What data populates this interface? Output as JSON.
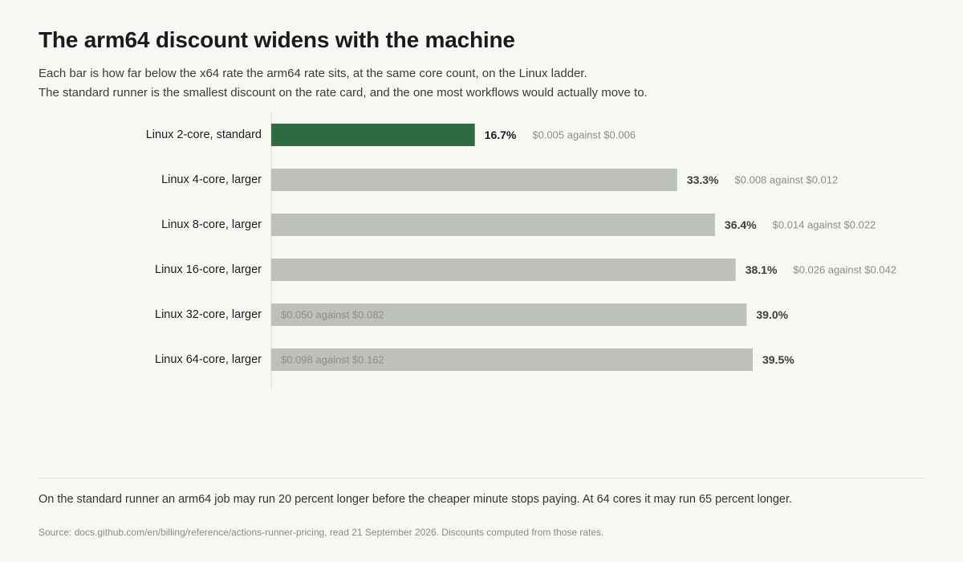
{
  "header": {
    "title": "The arm64 discount widens with the machine",
    "subtitle_line1": "Each bar is how far below the x64 rate the arm64 rate sits, at the same core count, on the Linux ladder.",
    "subtitle_line2": "The standard runner is the smallest discount on the rate card, and the one most workflows would actually move to."
  },
  "chart_data": {
    "type": "bar",
    "orientation": "horizontal",
    "categories": [
      "Linux 2-core, standard",
      "Linux 4-core, larger",
      "Linux 8-core, larger",
      "Linux 16-core, larger",
      "Linux 32-core, larger",
      "Linux 64-core, larger"
    ],
    "values": [
      16.7,
      33.3,
      36.4,
      38.1,
      39.0,
      39.5
    ],
    "value_labels": [
      "16.7%",
      "33.3%",
      "36.4%",
      "38.1%",
      "39.0%",
      "39.5%"
    ],
    "rate_labels": [
      "$0.005 against $0.006",
      "$0.008 against $0.012",
      "$0.014 against $0.022",
      "$0.026 against $0.042",
      "$0.050 against $0.082",
      "$0.098 against $0.162"
    ],
    "rate_label_inside": [
      false,
      false,
      false,
      false,
      true,
      true
    ],
    "highlight_index": 0,
    "xlim": [
      0,
      40
    ],
    "grid": false,
    "legend": "none",
    "colors": {
      "highlight": "#2e6b41",
      "default": "#bcc1ba",
      "value_highlight": "#1b1b19",
      "value_default": "#3d3d3a",
      "rate_text": "#8e8e88",
      "axis": "#dcdcd6"
    }
  },
  "footer": {
    "takeaway": "On the standard runner an arm64 job may run 20 percent longer before the cheaper minute stops paying. At 64 cores it may run 65 percent longer.",
    "source": "Source: docs.github.com/en/billing/reference/actions-runner-pricing, read 21 September 2026. Discounts computed from those rates."
  }
}
